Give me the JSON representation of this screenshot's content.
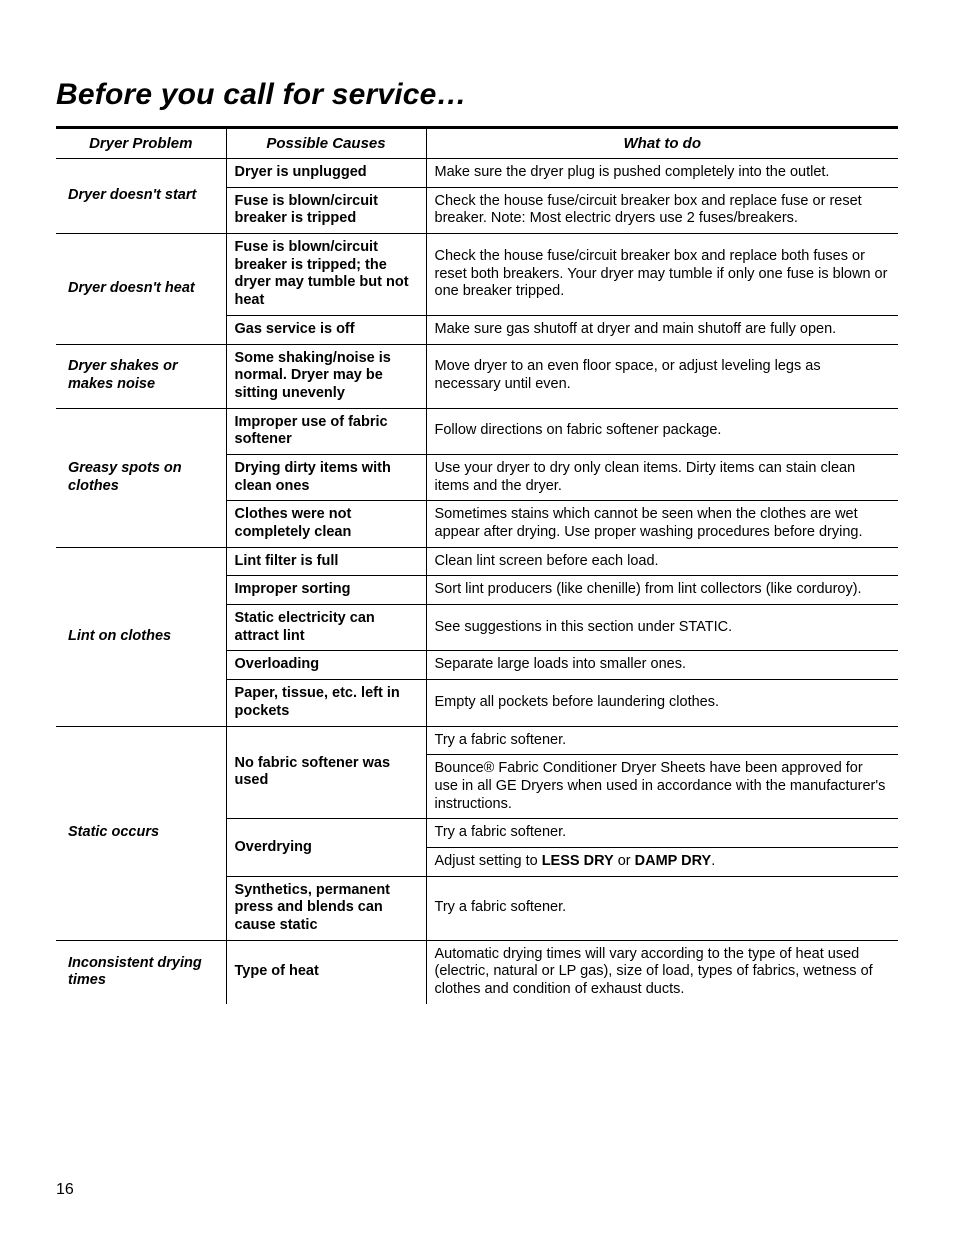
{
  "page": {
    "title": "Before you call for service…",
    "number": "16"
  },
  "headers": {
    "problem": "Dryer Problem",
    "cause": "Possible Causes",
    "todo": "What to do"
  },
  "rows": {
    "p1": "Dryer doesn't start",
    "p1c1": "Dryer is unplugged",
    "p1t1": "Make sure the dryer plug is pushed completely into the outlet.",
    "p1c2": "Fuse is blown/circuit breaker is tripped",
    "p1t2": "Check the house fuse/circuit breaker box and replace fuse or reset breaker. Note: Most electric dryers use 2 fuses/breakers.",
    "p2": "Dryer doesn't heat",
    "p2c1": "Fuse is blown/circuit breaker is tripped; the dryer may tumble but not heat",
    "p2t1": "Check the house fuse/circuit breaker box and replace both fuses or reset both breakers. Your dryer may tumble if only one fuse is blown or one breaker tripped.",
    "p2c2": "Gas service is off",
    "p2t2": "Make sure gas shutoff at dryer and main shutoff are fully open.",
    "p3": "Dryer shakes or makes noise",
    "p3c1": "Some shaking/noise is normal. Dryer may be sitting unevenly",
    "p3t1": "Move dryer to an even floor space, or adjust leveling legs as necessary until even.",
    "p4": "Greasy spots on clothes",
    "p4c1": "Improper use of fabric softener",
    "p4t1": "Follow directions on fabric softener package.",
    "p4c2": "Drying dirty items with clean ones",
    "p4t2": "Use your dryer to dry only clean items. Dirty items can stain clean items and the dryer.",
    "p4c3": "Clothes were not completely clean",
    "p4t3": "Sometimes stains which cannot be seen when the clothes are wet appear after drying. Use proper washing procedures before drying.",
    "p5": "Lint on clothes",
    "p5c1": "Lint filter is full",
    "p5t1": "Clean lint screen before each load.",
    "p5c2": "Improper sorting",
    "p5t2": "Sort lint producers (like chenille) from lint collectors (like corduroy).",
    "p5c3": "Static electricity can attract lint",
    "p5t3": "See suggestions in this section under STATIC.",
    "p5c4": "Overloading",
    "p5t4": "Separate large loads into smaller ones.",
    "p5c5": "Paper, tissue, etc. left in pockets",
    "p5t5": "Empty all pockets before laundering clothes.",
    "p6": "Static occurs",
    "p6c1": "No fabric softener was used",
    "p6t1": "Try a fabric softener.",
    "p6t1b": "Bounce® Fabric Conditioner Dryer Sheets have been approved for use in all GE Dryers when used in accordance with the manufacturer's instructions.",
    "p6c2": "Overdrying",
    "p6t2": "Try a fabric softener.",
    "p6t2b_pre": "Adjust setting to ",
    "p6t2b_b1": "LESS DRY",
    "p6t2b_mid": " or ",
    "p6t2b_b2": "DAMP DRY",
    "p6t2b_post": ".",
    "p6c3": "Synthetics, permanent press and blends can cause static",
    "p6t3": "Try a fabric softener.",
    "p7": "Inconsistent drying times",
    "p7c1": "Type of heat",
    "p7t1": "Automatic drying times will vary according to the type of heat used (electric, natural or LP gas), size of load, types of fabrics, wetness of clothes and condition of exhaust ducts."
  }
}
